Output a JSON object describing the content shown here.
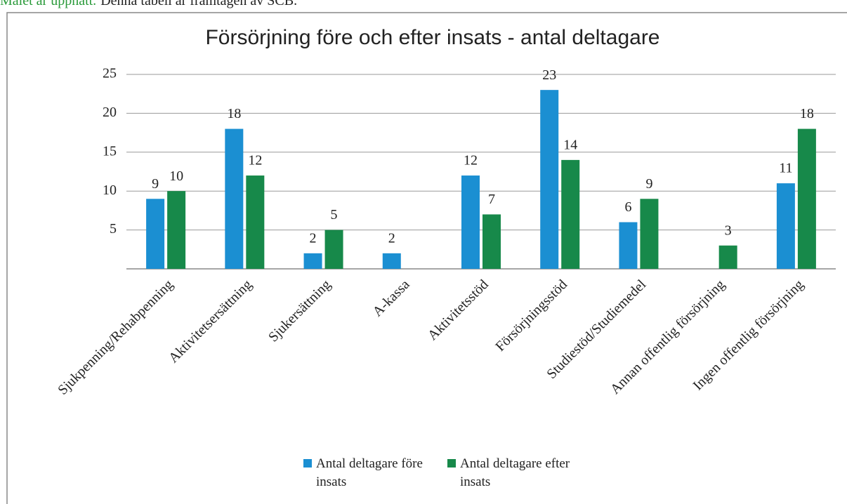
{
  "header": {
    "note": "Målet är uppnått.",
    "text": "Denna tabell är framtagen av SCB."
  },
  "chart_data": {
    "type": "bar",
    "title": "Försörjning före och efter insats - antal deltagare",
    "categories": [
      "Sjukpenning/Rehabpenning",
      "Aktivitetsersättning",
      "Sjukersättning",
      "A-kassa",
      "Aktivitetsstöd",
      "Försörjningsstöd",
      "Studiestöd/Studiemedel",
      "Annan offentlig försörjning",
      "Ingen offentlig försörjning"
    ],
    "series": [
      {
        "name": "Antal deltagare före insats",
        "color": "#1b8fd2",
        "values": [
          9,
          18,
          2,
          2,
          12,
          23,
          6,
          null,
          11
        ]
      },
      {
        "name": "Antal deltagare efter insats",
        "color": "#17894a",
        "values": [
          10,
          12,
          5,
          null,
          7,
          14,
          9,
          3,
          18
        ]
      }
    ],
    "ylim": [
      0,
      25
    ],
    "yticks": [
      5,
      10,
      15,
      20,
      25
    ],
    "grid": true,
    "legend": "bottom"
  }
}
